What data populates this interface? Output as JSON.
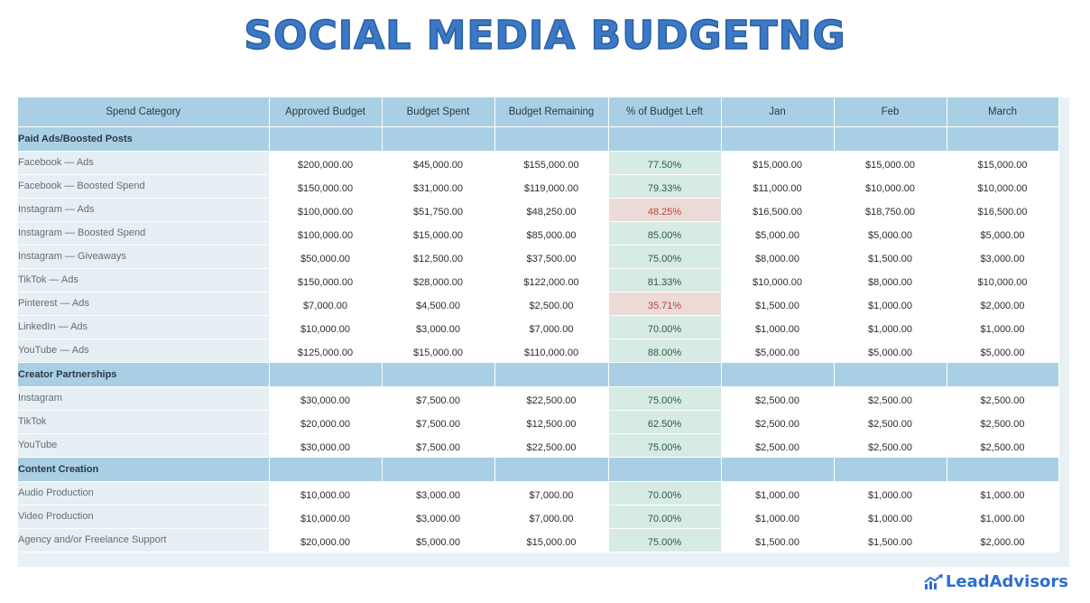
{
  "title": "SOCIAL MEDIA BUDGETNG",
  "brand": {
    "name": "LeadAdvisors",
    "color": "#2d6fd1",
    "icon": "rising-chart-logo-icon"
  },
  "colors": {
    "title": "#3b79c7",
    "header_bg": "#a9cfe4",
    "pct_good": "#d6ebe3",
    "pct_low": "#ecdad6"
  },
  "columns": [
    "Spend Category",
    "Approved Budget",
    "Budget Spent",
    "Budget Remaining",
    "% of Budget Left",
    "Jan",
    "Feb",
    "March"
  ],
  "sections": [
    {
      "name": "Paid Ads/Boosted Posts",
      "rows": [
        {
          "category": "Facebook — Ads",
          "approved": "$200,000.00",
          "spent": "$45,000.00",
          "remaining": "$155,000.00",
          "pct": "77.50%",
          "low": false,
          "jan": "$15,000.00",
          "feb": "$15,000.00",
          "march": "$15,000.00"
        },
        {
          "category": "Facebook — Boosted Spend",
          "approved": "$150,000.00",
          "spent": "$31,000.00",
          "remaining": "$119,000.00",
          "pct": "79.33%",
          "low": false,
          "jan": "$11,000.00",
          "feb": "$10,000.00",
          "march": "$10,000.00"
        },
        {
          "category": "Instagram — Ads",
          "approved": "$100,000.00",
          "spent": "$51,750.00",
          "remaining": "$48,250.00",
          "pct": "48.25%",
          "low": true,
          "jan": "$16,500.00",
          "feb": "$18,750.00",
          "march": "$16,500.00"
        },
        {
          "category": "Instagram — Boosted Spend",
          "approved": "$100,000.00",
          "spent": "$15,000.00",
          "remaining": "$85,000.00",
          "pct": "85.00%",
          "low": false,
          "jan": "$5,000.00",
          "feb": "$5,000.00",
          "march": "$5,000.00"
        },
        {
          "category": "Instagram — Giveaways",
          "approved": "$50,000.00",
          "spent": "$12,500.00",
          "remaining": "$37,500.00",
          "pct": "75.00%",
          "low": false,
          "jan": "$8,000.00",
          "feb": "$1,500.00",
          "march": "$3,000.00"
        },
        {
          "category": "TikTok — Ads",
          "approved": "$150,000.00",
          "spent": "$28,000.00",
          "remaining": "$122,000.00",
          "pct": "81.33%",
          "low": false,
          "jan": "$10,000.00",
          "feb": "$8,000.00",
          "march": "$10,000.00"
        },
        {
          "category": "Pinterest — Ads",
          "approved": "$7,000.00",
          "spent": "$4,500.00",
          "remaining": "$2,500.00",
          "pct": "35.71%",
          "low": true,
          "jan": "$1,500.00",
          "feb": "$1,000.00",
          "march": "$2,000.00"
        },
        {
          "category": "LinkedIn — Ads",
          "approved": "$10,000.00",
          "spent": "$3,000.00",
          "remaining": "$7,000.00",
          "pct": "70.00%",
          "low": false,
          "jan": "$1,000.00",
          "feb": "$1,000.00",
          "march": "$1,000.00"
        },
        {
          "category": "YouTube — Ads",
          "approved": "$125,000.00",
          "spent": "$15,000.00",
          "remaining": "$110,000.00",
          "pct": "88.00%",
          "low": false,
          "jan": "$5,000.00",
          "feb": "$5,000.00",
          "march": "$5,000.00"
        }
      ]
    },
    {
      "name": "Creator Partnerships",
      "rows": [
        {
          "category": "Instagram",
          "approved": "$30,000.00",
          "spent": "$7,500.00",
          "remaining": "$22,500.00",
          "pct": "75.00%",
          "low": false,
          "jan": "$2,500.00",
          "feb": "$2,500.00",
          "march": "$2,500.00"
        },
        {
          "category": "TikTok",
          "approved": "$20,000.00",
          "spent": "$7,500.00",
          "remaining": "$12,500.00",
          "pct": "62.50%",
          "low": false,
          "jan": "$2,500.00",
          "feb": "$2,500.00",
          "march": "$2,500.00"
        },
        {
          "category": "YouTube",
          "approved": "$30,000.00",
          "spent": "$7,500.00",
          "remaining": "$22,500.00",
          "pct": "75.00%",
          "low": false,
          "jan": "$2,500.00",
          "feb": "$2,500.00",
          "march": "$2,500.00"
        }
      ]
    },
    {
      "name": "Content Creation",
      "rows": [
        {
          "category": "Audio Production",
          "approved": "$10,000.00",
          "spent": "$3,000.00",
          "remaining": "$7,000.00",
          "pct": "70.00%",
          "low": false,
          "jan": "$1,000.00",
          "feb": "$1,000.00",
          "march": "$1,000.00"
        },
        {
          "category": "Video Production",
          "approved": "$10,000.00",
          "spent": "$3,000.00",
          "remaining": "$7,000.00",
          "pct": "70.00%",
          "low": false,
          "jan": "$1,000.00",
          "feb": "$1,000.00",
          "march": "$1,000.00"
        },
        {
          "category": "Agency and/or Freelance Support",
          "approved": "$20,000.00",
          "spent": "$5,000.00",
          "remaining": "$15,000.00",
          "pct": "75.00%",
          "low": false,
          "jan": "$1,500.00",
          "feb": "$1,500.00",
          "march": "$2,000.00"
        }
      ]
    }
  ]
}
